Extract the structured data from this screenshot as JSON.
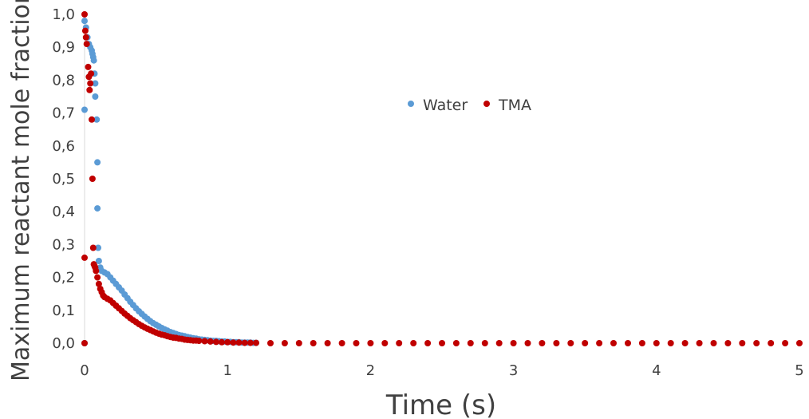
{
  "chart_data": {
    "type": "scatter",
    "title": "",
    "xlabel": "Time (s)",
    "ylabel": "Maximum reactant mole fraction",
    "xlim": [
      0,
      5
    ],
    "ylim": [
      0,
      1.0
    ],
    "x_ticks": [
      0,
      1,
      2,
      3,
      4,
      5
    ],
    "x_tick_labels": [
      "0",
      "1",
      "2",
      "3",
      "4",
      "5"
    ],
    "y_ticks": [
      0,
      0.1,
      0.2,
      0.3,
      0.4,
      0.5,
      0.6,
      0.7,
      0.8,
      0.9,
      1.0
    ],
    "y_tick_labels": [
      "0,0",
      "0,1",
      "0,2",
      "0,3",
      "0,4",
      "0,5",
      "0,6",
      "0,7",
      "0,8",
      "0,9",
      "1,0"
    ],
    "grid": false,
    "legend_position": "upper-center",
    "series": [
      {
        "name": "Water",
        "color": "#5b9bd5",
        "points": [
          [
            0.0,
            0.0
          ],
          [
            0.0,
            0.71
          ],
          [
            0.0,
            0.98
          ],
          [
            0.01,
            0.96
          ],
          [
            0.02,
            0.93
          ],
          [
            0.03,
            0.91
          ],
          [
            0.04,
            0.9
          ],
          [
            0.05,
            0.89
          ],
          [
            0.055,
            0.88
          ],
          [
            0.06,
            0.87
          ],
          [
            0.065,
            0.86
          ],
          [
            0.07,
            0.82
          ],
          [
            0.075,
            0.79
          ],
          [
            0.075,
            0.75
          ],
          [
            0.085,
            0.68
          ],
          [
            0.09,
            0.55
          ],
          [
            0.09,
            0.41
          ],
          [
            0.095,
            0.29
          ],
          [
            0.1,
            0.25
          ],
          [
            0.11,
            0.23
          ],
          [
            0.12,
            0.22
          ],
          [
            0.14,
            0.215
          ],
          [
            0.16,
            0.21
          ],
          [
            0.18,
            0.2
          ],
          [
            0.2,
            0.19
          ],
          [
            0.22,
            0.18
          ],
          [
            0.24,
            0.17
          ],
          [
            0.26,
            0.16
          ],
          [
            0.28,
            0.148
          ],
          [
            0.3,
            0.137
          ],
          [
            0.32,
            0.126
          ],
          [
            0.34,
            0.116
          ],
          [
            0.36,
            0.106
          ],
          [
            0.38,
            0.097
          ],
          [
            0.4,
            0.089
          ],
          [
            0.42,
            0.081
          ],
          [
            0.44,
            0.074
          ],
          [
            0.46,
            0.067
          ],
          [
            0.48,
            0.061
          ],
          [
            0.5,
            0.056
          ],
          [
            0.52,
            0.051
          ],
          [
            0.54,
            0.046
          ],
          [
            0.56,
            0.042
          ],
          [
            0.58,
            0.038
          ],
          [
            0.6,
            0.034
          ],
          [
            0.62,
            0.031
          ],
          [
            0.64,
            0.028
          ],
          [
            0.66,
            0.025
          ],
          [
            0.68,
            0.023
          ],
          [
            0.7,
            0.021
          ],
          [
            0.72,
            0.019
          ],
          [
            0.74,
            0.017
          ],
          [
            0.76,
            0.015
          ],
          [
            0.78,
            0.014
          ],
          [
            0.8,
            0.012
          ],
          [
            0.82,
            0.011
          ],
          [
            0.84,
            0.01
          ],
          [
            0.86,
            0.009
          ],
          [
            0.88,
            0.008
          ],
          [
            0.9,
            0.007
          ],
          [
            0.92,
            0.007
          ],
          [
            0.94,
            0.006
          ],
          [
            0.96,
            0.005
          ],
          [
            0.98,
            0.005
          ],
          [
            1.0,
            0.004
          ],
          [
            1.02,
            0.004
          ],
          [
            1.04,
            0.003
          ],
          [
            1.06,
            0.003
          ],
          [
            1.08,
            0.003
          ],
          [
            1.1,
            0.002
          ],
          [
            1.12,
            0.002
          ],
          [
            1.14,
            0.002
          ],
          [
            1.16,
            0.002
          ],
          [
            1.18,
            0.001
          ],
          [
            1.2,
            0.001
          ]
        ]
      },
      {
        "name": "TMA",
        "color": "#c00000",
        "points": [
          [
            0.0,
            0.0
          ],
          [
            0.0,
            0.26
          ],
          [
            0.0,
            1.0
          ],
          [
            0.005,
            0.95
          ],
          [
            0.01,
            0.93
          ],
          [
            0.015,
            0.91
          ],
          [
            0.025,
            0.84
          ],
          [
            0.03,
            0.81
          ],
          [
            0.035,
            0.77
          ],
          [
            0.04,
            0.79
          ],
          [
            0.045,
            0.82
          ],
          [
            0.05,
            0.68
          ],
          [
            0.055,
            0.5
          ],
          [
            0.06,
            0.29
          ],
          [
            0.065,
            0.24
          ],
          [
            0.07,
            0.235
          ],
          [
            0.075,
            0.23
          ],
          [
            0.08,
            0.22
          ],
          [
            0.09,
            0.2
          ],
          [
            0.1,
            0.18
          ],
          [
            0.11,
            0.165
          ],
          [
            0.12,
            0.155
          ],
          [
            0.13,
            0.145
          ],
          [
            0.14,
            0.14
          ],
          [
            0.16,
            0.135
          ],
          [
            0.18,
            0.13
          ],
          [
            0.2,
            0.122
          ],
          [
            0.22,
            0.114
          ],
          [
            0.24,
            0.106
          ],
          [
            0.26,
            0.098
          ],
          [
            0.28,
            0.09
          ],
          [
            0.3,
            0.083
          ],
          [
            0.32,
            0.076
          ],
          [
            0.34,
            0.07
          ],
          [
            0.36,
            0.064
          ],
          [
            0.38,
            0.058
          ],
          [
            0.4,
            0.053
          ],
          [
            0.42,
            0.048
          ],
          [
            0.44,
            0.044
          ],
          [
            0.46,
            0.04
          ],
          [
            0.48,
            0.036
          ],
          [
            0.5,
            0.032
          ],
          [
            0.52,
            0.029
          ],
          [
            0.54,
            0.026
          ],
          [
            0.56,
            0.024
          ],
          [
            0.58,
            0.021
          ],
          [
            0.6,
            0.019
          ],
          [
            0.62,
            0.017
          ],
          [
            0.64,
            0.016
          ],
          [
            0.66,
            0.014
          ],
          [
            0.68,
            0.013
          ],
          [
            0.7,
            0.011
          ],
          [
            0.72,
            0.01
          ],
          [
            0.74,
            0.009
          ],
          [
            0.76,
            0.008
          ],
          [
            0.78,
            0.008
          ],
          [
            0.8,
            0.007
          ],
          [
            0.84,
            0.006
          ],
          [
            0.88,
            0.005
          ],
          [
            0.92,
            0.004
          ],
          [
            0.96,
            0.003
          ],
          [
            1.0,
            0.003
          ],
          [
            1.04,
            0.002
          ],
          [
            1.08,
            0.002
          ],
          [
            1.12,
            0.001
          ],
          [
            1.16,
            0.001
          ],
          [
            1.2,
            0.001
          ],
          [
            1.3,
            0.0
          ],
          [
            1.4,
            0.0
          ],
          [
            1.5,
            0.0
          ],
          [
            1.6,
            0.0
          ],
          [
            1.7,
            0.0
          ],
          [
            1.8,
            0.0
          ],
          [
            1.9,
            0.0
          ],
          [
            2.0,
            0.0
          ],
          [
            2.1,
            0.0
          ],
          [
            2.2,
            0.0
          ],
          [
            2.3,
            0.0
          ],
          [
            2.4,
            0.0
          ],
          [
            2.5,
            0.0
          ],
          [
            2.6,
            0.0
          ],
          [
            2.7,
            0.0
          ],
          [
            2.8,
            0.0
          ],
          [
            2.9,
            0.0
          ],
          [
            3.0,
            0.0
          ],
          [
            3.1,
            0.0
          ],
          [
            3.2,
            0.0
          ],
          [
            3.3,
            0.0
          ],
          [
            3.4,
            0.0
          ],
          [
            3.5,
            0.0
          ],
          [
            3.6,
            0.0
          ],
          [
            3.7,
            0.0
          ],
          [
            3.8,
            0.0
          ],
          [
            3.9,
            0.0
          ],
          [
            4.0,
            0.0
          ],
          [
            4.1,
            0.0
          ],
          [
            4.2,
            0.0
          ],
          [
            4.3,
            0.0
          ],
          [
            4.4,
            0.0
          ],
          [
            4.5,
            0.0
          ],
          [
            4.6,
            0.0
          ],
          [
            4.7,
            0.0
          ],
          [
            4.8,
            0.0
          ],
          [
            4.9,
            0.0
          ],
          [
            5.0,
            0.0
          ]
        ]
      }
    ]
  }
}
